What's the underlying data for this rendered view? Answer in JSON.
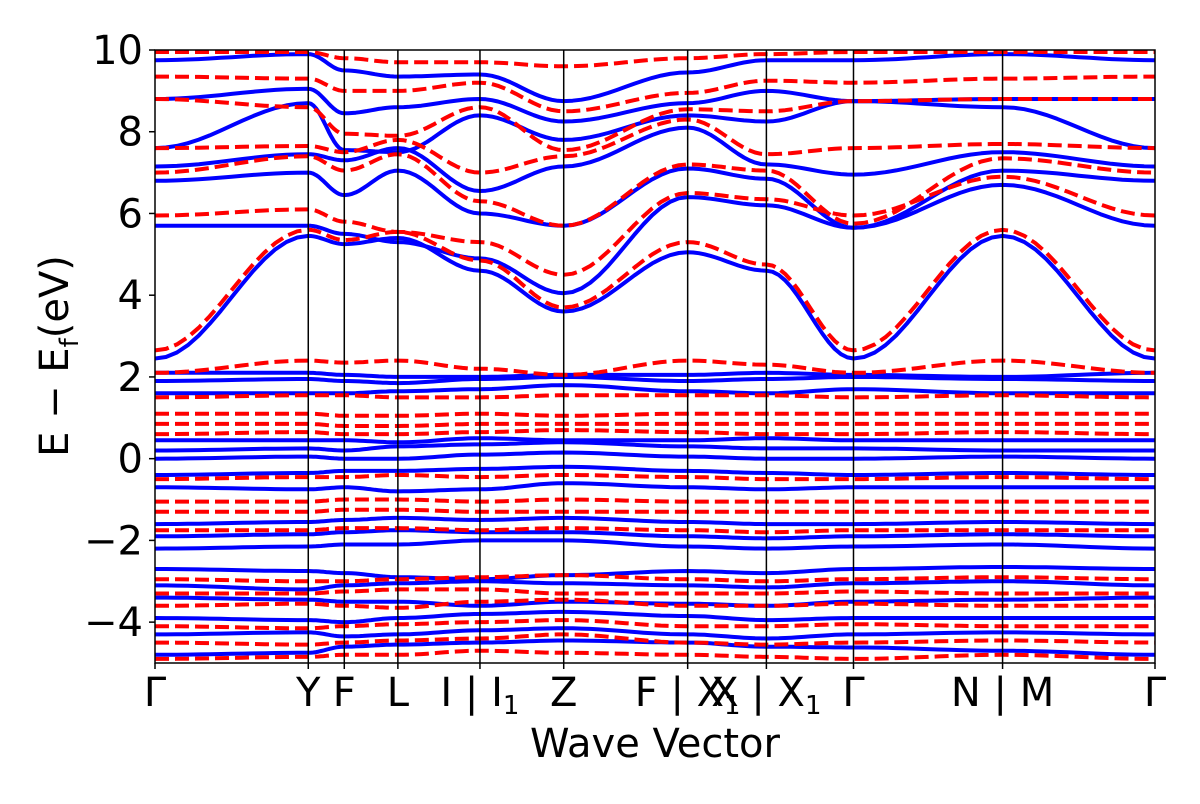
{
  "chart_data": {
    "type": "line",
    "title": "",
    "xlabel": "Wave Vector",
    "ylabel": "E − E",
    "ylabel_sub": "f",
    "ylabel_unit": "(eV)",
    "ylim": [
      -5,
      10
    ],
    "yticks": [
      -4,
      -2,
      0,
      2,
      4,
      6,
      8,
      10
    ],
    "ytick_labels": [
      "−4",
      "−2",
      "0",
      "2",
      "4",
      "6",
      "8",
      "10"
    ],
    "grid": false,
    "legend": "none",
    "kpath": {
      "x": [
        0,
        1.83,
        2.26,
        2.9,
        3.88,
        4.88,
        6.36,
        7.3,
        8.34,
        10.12,
        11.94
      ],
      "labels": [
        "Γ",
        "Y",
        "F",
        "L",
        "I | I",
        "Z",
        "F | X",
        "X | X",
        "Γ",
        "N | M",
        "Γ"
      ],
      "label_subs": [
        "",
        "",
        "",
        "",
        "1",
        "",
        "1",
        "1",
        "",
        "",
        ""
      ],
      "breaks": [
        3.88,
        6.36,
        7.3,
        10.12
      ]
    },
    "series": [
      {
        "style": "solid",
        "color": "#0000ff",
        "bands": [
          [
            -4.8,
            -4.75,
            -4.6,
            -4.55,
            -4.5,
            -4.45,
            -4.5,
            -4.6,
            -4.62,
            -4.7,
            -4.8
          ],
          [
            -4.3,
            -4.25,
            -4.35,
            -4.3,
            -4.2,
            -4.15,
            -4.3,
            -4.4,
            -4.3,
            -4.25,
            -4.3
          ],
          [
            -3.9,
            -3.95,
            -4.0,
            -3.9,
            -3.8,
            -3.75,
            -3.85,
            -3.95,
            -3.9,
            -3.9,
            -3.9
          ],
          [
            -3.4,
            -3.45,
            -3.5,
            -3.5,
            -3.6,
            -3.5,
            -3.55,
            -3.6,
            -3.5,
            -3.45,
            -3.4
          ],
          [
            -3.1,
            -3.2,
            -3.1,
            -3.05,
            -3.0,
            -3.05,
            -3.1,
            -3.15,
            -3.05,
            -3.0,
            -3.1
          ],
          [
            -2.7,
            -2.75,
            -2.8,
            -2.9,
            -2.95,
            -2.85,
            -2.75,
            -2.8,
            -2.7,
            -2.65,
            -2.7
          ],
          [
            -2.2,
            -2.15,
            -2.1,
            -2.1,
            -2.0,
            -2.0,
            -2.15,
            -2.2,
            -2.15,
            -2.1,
            -2.2
          ],
          [
            -1.9,
            -1.85,
            -1.8,
            -1.75,
            -1.8,
            -1.8,
            -1.9,
            -1.95,
            -1.9,
            -1.85,
            -1.9
          ],
          [
            -1.6,
            -1.55,
            -1.5,
            -1.45,
            -1.5,
            -1.45,
            -1.55,
            -1.6,
            -1.6,
            -1.55,
            -1.6
          ],
          [
            -0.7,
            -0.75,
            -0.7,
            -0.8,
            -0.75,
            -0.6,
            -0.7,
            -0.75,
            -0.7,
            -0.7,
            -0.7
          ],
          [
            -0.4,
            -0.35,
            -0.3,
            -0.3,
            -0.25,
            -0.2,
            -0.3,
            -0.35,
            -0.4,
            -0.35,
            -0.4
          ],
          [
            0.0,
            0.05,
            0.0,
            0.0,
            0.1,
            0.15,
            0.05,
            0.0,
            0.0,
            0.05,
            0.0
          ],
          [
            0.2,
            0.25,
            0.2,
            0.3,
            0.35,
            0.4,
            0.3,
            0.25,
            0.25,
            0.2,
            0.2
          ],
          [
            0.45,
            0.45,
            0.45,
            0.4,
            0.5,
            0.45,
            0.45,
            0.5,
            0.45,
            0.45,
            0.45
          ],
          [
            1.6,
            1.6,
            1.6,
            1.65,
            1.7,
            1.8,
            1.65,
            1.6,
            1.7,
            1.6,
            1.6
          ],
          [
            1.9,
            1.95,
            1.9,
            1.85,
            1.95,
            2.0,
            1.9,
            1.95,
            2.0,
            1.95,
            1.9
          ],
          [
            2.1,
            2.1,
            2.05,
            2.0,
            2.0,
            2.05,
            2.05,
            2.1,
            2.05,
            2.0,
            2.1
          ],
          [
            2.45,
            5.45,
            5.25,
            5.4,
            4.6,
            3.6,
            5.05,
            4.6,
            2.45,
            5.45,
            2.45
          ],
          [
            5.7,
            5.7,
            5.5,
            5.3,
            4.9,
            4.05,
            6.4,
            6.2,
            5.65,
            6.7,
            5.7
          ],
          [
            6.8,
            7.0,
            6.45,
            7.05,
            6.0,
            5.7,
            7.1,
            6.85,
            5.65,
            7.05,
            6.8
          ],
          [
            7.15,
            7.45,
            7.3,
            7.6,
            6.55,
            7.15,
            8.1,
            7.2,
            6.95,
            7.5,
            7.15
          ],
          [
            7.6,
            8.7,
            7.55,
            7.5,
            8.4,
            7.8,
            8.4,
            8.25,
            8.75,
            8.6,
            7.6
          ],
          [
            8.8,
            9.05,
            8.45,
            8.6,
            8.8,
            8.25,
            8.7,
            9.0,
            8.75,
            8.8,
            8.8
          ],
          [
            9.75,
            9.9,
            9.5,
            9.35,
            9.4,
            8.75,
            9.45,
            9.75,
            9.75,
            9.9,
            9.75
          ]
        ]
      },
      {
        "style": "dashed",
        "color": "#ff0000",
        "bands": [
          [
            -4.9,
            -4.85,
            -4.8,
            -4.8,
            -4.7,
            -4.75,
            -4.8,
            -4.85,
            -4.9,
            -4.8,
            -4.9
          ],
          [
            -4.5,
            -4.55,
            -4.5,
            -4.45,
            -4.4,
            -4.3,
            -4.5,
            -4.55,
            -4.5,
            -4.45,
            -4.5
          ],
          [
            -4.1,
            -4.15,
            -4.1,
            -4.05,
            -4.0,
            -3.95,
            -4.1,
            -4.1,
            -4.05,
            -4.1,
            -4.1
          ],
          [
            -3.6,
            -3.55,
            -3.6,
            -3.65,
            -3.5,
            -3.45,
            -3.6,
            -3.6,
            -3.55,
            -3.6,
            -3.6
          ],
          [
            -3.3,
            -3.3,
            -3.25,
            -3.2,
            -3.2,
            -3.3,
            -3.3,
            -3.3,
            -3.25,
            -3.3,
            -3.3
          ],
          [
            -2.95,
            -3.0,
            -3.0,
            -2.95,
            -2.9,
            -2.85,
            -2.95,
            -3.0,
            -2.95,
            -2.9,
            -2.95
          ],
          [
            -1.75,
            -1.75,
            -1.7,
            -1.7,
            -1.75,
            -1.7,
            -1.75,
            -1.8,
            -1.75,
            -1.75,
            -1.75
          ],
          [
            -1.3,
            -1.3,
            -1.25,
            -1.25,
            -1.3,
            -1.3,
            -1.3,
            -1.3,
            -1.3,
            -1.3,
            -1.3
          ],
          [
            -1.05,
            -1.05,
            -1.0,
            -1.0,
            -1.05,
            -1.0,
            -1.05,
            -1.05,
            -1.05,
            -1.05,
            -1.05
          ],
          [
            -0.5,
            -0.45,
            -0.45,
            -0.4,
            -0.45,
            -0.4,
            -0.45,
            -0.5,
            -0.5,
            -0.45,
            -0.5
          ],
          [
            0.6,
            0.65,
            0.6,
            0.6,
            0.65,
            0.7,
            0.65,
            0.6,
            0.6,
            0.65,
            0.6
          ],
          [
            0.85,
            0.85,
            0.8,
            0.8,
            0.85,
            0.85,
            0.85,
            0.85,
            0.85,
            0.85,
            0.85
          ],
          [
            1.1,
            1.1,
            1.05,
            1.05,
            1.1,
            1.05,
            1.1,
            1.1,
            1.1,
            1.1,
            1.1
          ],
          [
            1.5,
            1.55,
            1.55,
            1.5,
            1.5,
            1.55,
            1.55,
            1.55,
            1.5,
            1.55,
            1.5
          ],
          [
            2.1,
            2.4,
            2.35,
            2.4,
            2.2,
            2.05,
            2.4,
            2.3,
            2.1,
            2.4,
            2.1
          ],
          [
            2.65,
            5.6,
            5.35,
            5.55,
            4.85,
            3.7,
            5.3,
            4.75,
            2.65,
            5.6,
            2.65
          ],
          [
            5.95,
            6.1,
            5.8,
            5.55,
            5.3,
            4.5,
            6.5,
            6.35,
            5.95,
            6.9,
            5.95
          ],
          [
            7.0,
            7.4,
            7.05,
            7.45,
            6.3,
            5.7,
            7.2,
            7.05,
            5.75,
            7.35,
            7.0
          ],
          [
            7.6,
            7.65,
            7.5,
            7.8,
            7.0,
            7.4,
            8.3,
            7.45,
            7.6,
            7.7,
            7.6
          ],
          [
            8.8,
            8.6,
            7.95,
            7.9,
            8.6,
            7.55,
            8.55,
            8.5,
            8.75,
            8.8,
            8.8
          ],
          [
            9.35,
            9.3,
            9.0,
            9.0,
            9.2,
            8.5,
            8.95,
            9.25,
            9.2,
            9.3,
            9.35
          ],
          [
            9.95,
            9.95,
            9.8,
            9.7,
            9.7,
            9.6,
            9.8,
            9.9,
            9.95,
            9.95,
            9.95
          ]
        ]
      }
    ]
  }
}
